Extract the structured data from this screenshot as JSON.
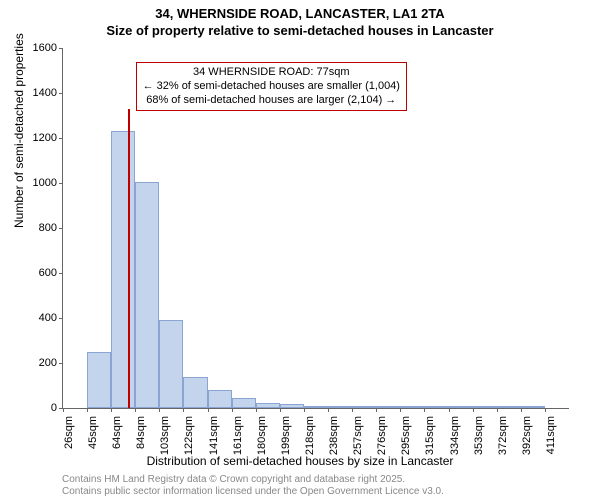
{
  "title_line1": "34, WHERNSIDE ROAD, LANCASTER, LA1 2TA",
  "title_line2": "Size of property relative to semi-detached houses in Lancaster",
  "ylabel": "Number of semi-detached properties",
  "xlabel": "Distribution of semi-detached houses by size in Lancaster",
  "chart": {
    "type": "histogram",
    "ylim": [
      0,
      1600
    ],
    "yticks": [
      0,
      200,
      400,
      600,
      800,
      1000,
      1200,
      1400,
      1600
    ],
    "xtick_labels": [
      "26sqm",
      "45sqm",
      "64sqm",
      "84sqm",
      "103sqm",
      "122sqm",
      "141sqm",
      "161sqm",
      "180sqm",
      "199sqm",
      "218sqm",
      "238sqm",
      "257sqm",
      "276sqm",
      "295sqm",
      "315sqm",
      "334sqm",
      "353sqm",
      "372sqm",
      "392sqm",
      "411sqm"
    ],
    "bar_values": [
      0,
      250,
      1230,
      1005,
      390,
      140,
      82,
      45,
      22,
      16,
      10,
      6,
      4,
      3,
      2,
      1,
      1,
      1,
      1,
      1,
      0
    ],
    "bar_fill": "#c5d4ed",
    "bar_stroke": "#8aa5d1",
    "background_color": "#ffffff",
    "axis_color": "#666666",
    "label_fontsize": 12,
    "tick_fontsize": 11,
    "marker": {
      "bin_index": 2,
      "position_in_bin": 0.68,
      "color": "#c00000"
    },
    "annotation": {
      "line1": "34 WHERNSIDE ROAD: 77sqm",
      "line2": "← 32% of semi-detached houses are smaller (1,004)",
      "line3": "68% of semi-detached houses are larger (2,104) →",
      "border_color": "#c00000",
      "fontsize": 11
    }
  },
  "footer_line1": "Contains HM Land Registry data © Crown copyright and database right 2025.",
  "footer_line2": "Contains public sector information licensed under the Open Government Licence v3.0."
}
